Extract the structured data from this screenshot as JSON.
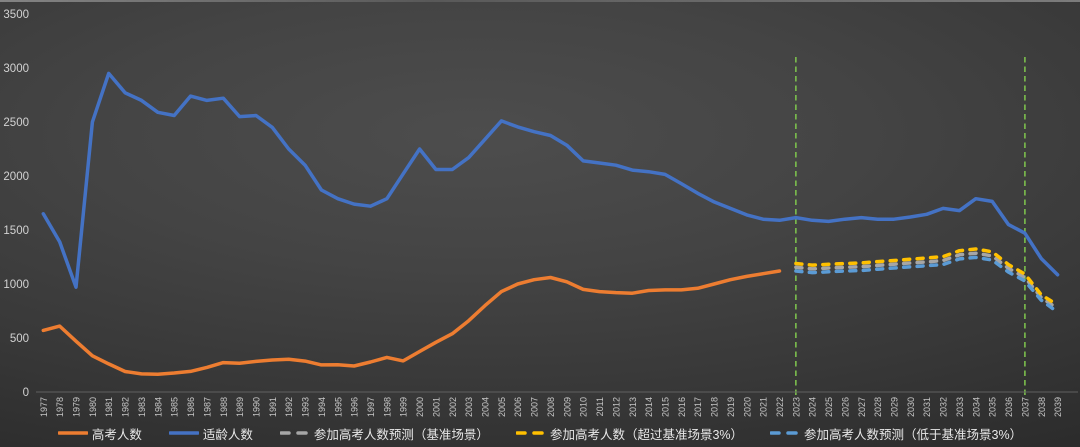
{
  "chart_data": {
    "type": "line",
    "title": "",
    "xlabel": "",
    "ylabel": "",
    "x_range": [
      1977,
      2039
    ],
    "x_ticks": [
      1977,
      1978,
      1979,
      1980,
      1981,
      1982,
      1983,
      1984,
      1985,
      1986,
      1987,
      1988,
      1989,
      1990,
      1991,
      1992,
      1993,
      1994,
      1995,
      1996,
      1997,
      1998,
      1999,
      2000,
      2001,
      2002,
      2003,
      2004,
      2005,
      2006,
      2007,
      2008,
      2009,
      2010,
      2011,
      2012,
      2013,
      2014,
      2015,
      2016,
      2017,
      2018,
      2019,
      2020,
      2021,
      2022,
      2023,
      2024,
      2025,
      2026,
      2027,
      2028,
      2029,
      2030,
      2031,
      2032,
      2033,
      2034,
      2035,
      2036,
      2037,
      2038,
      2039
    ],
    "y_ticks": [
      0,
      500,
      1000,
      1500,
      2000,
      2500,
      3000,
      3500
    ],
    "ylim": [
      0,
      3500
    ],
    "grid": false,
    "legend_position": "bottom",
    "series": [
      {
        "key": "gaokao-actual",
        "name": "高考人数",
        "color": "#ED7D31",
        "style": "solid",
        "start_year": 1977,
        "values": [
          570,
          610,
          470,
          335,
          260,
          190,
          168,
          165,
          176,
          191,
          228,
          272,
          266,
          283,
          296,
          303,
          286,
          251,
          253,
          241,
          278,
          320,
          288,
          375,
          460,
          540,
          660,
          800,
          930,
          1000,
          1040,
          1060,
          1020,
          950,
          930,
          920,
          915,
          940,
          945,
          945,
          960,
          1000,
          1040,
          1070,
          1095,
          1120
        ]
      },
      {
        "key": "age-cohort",
        "name": "适龄人数",
        "color": "#4472C4",
        "style": "solid",
        "start_year": 1977,
        "values": [
          1650,
          1390,
          970,
          2500,
          2950,
          2770,
          2700,
          2590,
          2560,
          2740,
          2700,
          2720,
          2550,
          2560,
          2450,
          2250,
          2100,
          1870,
          1790,
          1740,
          1720,
          1790,
          2020,
          2250,
          2060,
          2060,
          2170,
          2340,
          2510,
          2455,
          2410,
          2375,
          2285,
          2140,
          2120,
          2100,
          2055,
          2040,
          2015,
          1930,
          1840,
          1760,
          1700,
          1640,
          1600,
          1590,
          1615,
          1590,
          1580,
          1600,
          1615,
          1600,
          1600,
          1620,
          1645,
          1700,
          1680,
          1790,
          1765,
          1550,
          1470,
          1235,
          1085
        ]
      },
      {
        "key": "forecast-baseline",
        "name": "参加高考人数预测（基准场景）",
        "color": "#A6A6A6",
        "style": "dashed",
        "start_year": 2023,
        "values": [
          1155,
          1140,
          1148,
          1155,
          1160,
          1172,
          1183,
          1195,
          1205,
          1218,
          1270,
          1285,
          1260,
          1145,
          1060,
          875,
          770
        ]
      },
      {
        "key": "forecast-above",
        "name": "参加高考人数（超过基准场景3%）",
        "color": "#FFC000",
        "style": "dashed",
        "start_year": 2023,
        "values": [
          1190,
          1175,
          1182,
          1190,
          1195,
          1207,
          1218,
          1230,
          1241,
          1254,
          1308,
          1324,
          1298,
          1180,
          1092,
          900,
          805
        ]
      },
      {
        "key": "forecast-below",
        "name": "参加高考人数预测（低于基准场景3%）",
        "color": "#5B9BD5",
        "style": "dashed",
        "start_year": 2023,
        "values": [
          1120,
          1106,
          1113,
          1120,
          1125,
          1137,
          1148,
          1159,
          1169,
          1181,
          1232,
          1246,
          1222,
          1110,
          1028,
          850,
          740
        ]
      }
    ],
    "vlines": [
      {
        "year": 2023,
        "color": "#7CBF4D",
        "style": "dashed"
      },
      {
        "year": 2037,
        "color": "#7CBF4D",
        "style": "dashed"
      }
    ],
    "colors": {
      "axis_line": "#606060",
      "y_tick_labels": "#d2d2d2",
      "x_tick_labels": "#c7c7c7",
      "legend_text": "#e8e8e8"
    }
  }
}
